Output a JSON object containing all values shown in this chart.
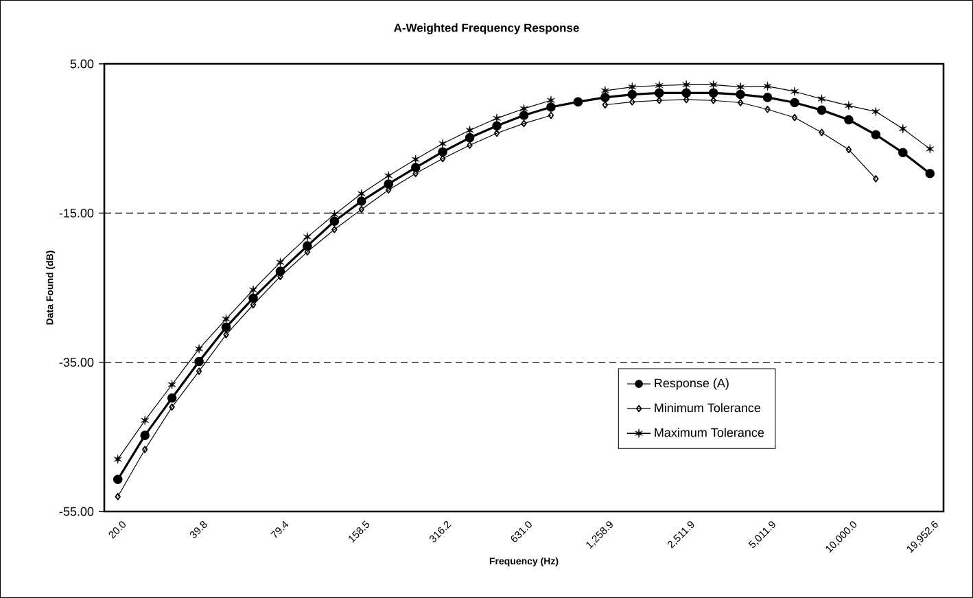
{
  "chart_data": {
    "type": "line",
    "title": "A-Weighted Frequency Response",
    "xlabel": "Frequency (Hz)",
    "ylabel": "Data Found (dB)",
    "categories": [
      "20.0",
      null,
      null,
      "39.8",
      null,
      null,
      "79.4",
      null,
      null,
      "158.5",
      null,
      null,
      "316.2",
      null,
      null,
      "631.0",
      null,
      null,
      "1,258.9",
      null,
      null,
      "2,511.9",
      null,
      null,
      "5,011.9",
      null,
      null,
      "10,000.0",
      null,
      null,
      "19,952.6"
    ],
    "ylim": [
      -55,
      5
    ],
    "yticks": [
      {
        "value": -55,
        "label": "-55.00"
      },
      {
        "value": -35,
        "label": "-35.00"
      },
      {
        "value": -15,
        "label": "-15.00"
      },
      {
        "value": 5,
        "label": "5.00"
      }
    ],
    "grid": "y",
    "legend": "bottom right",
    "line_style": "solid",
    "series": [
      {
        "name": "Response (A)",
        "color": "#000000",
        "marker": "circle",
        "values": [
          -50.7,
          -44.8,
          -39.8,
          -34.9,
          -30.3,
          -26.4,
          -22.8,
          -19.4,
          -16.1,
          -13.4,
          -11.1,
          -8.9,
          -6.8,
          -4.9,
          -3.3,
          -1.9,
          -0.8,
          -0.1,
          0.5,
          0.9,
          1.1,
          1.1,
          1.1,
          0.9,
          0.5,
          -0.2,
          -1.2,
          -2.5,
          -4.5,
          -6.9,
          -9.7
        ]
      },
      {
        "name": "Minimum Tolerance",
        "color": "#000000",
        "marker": "diamond",
        "values": [
          -53.0,
          -46.7,
          -41.0,
          -36.2,
          -31.3,
          -27.3,
          -23.5,
          -20.2,
          -17.2,
          -14.5,
          -11.9,
          -9.7,
          -7.7,
          -5.9,
          -4.3,
          -3.0,
          -1.9,
          null,
          -0.5,
          -0.1,
          0.1,
          0.2,
          0.1,
          -0.2,
          -1.1,
          -2.2,
          -4.2,
          -6.5,
          -10.4,
          null,
          null
        ]
      },
      {
        "name": "Maximum Tolerance",
        "color": "#000000",
        "marker": "cross",
        "values": [
          -48.0,
          -42.8,
          -38.0,
          -33.2,
          -29.2,
          -25.3,
          -21.6,
          -18.2,
          -15.2,
          -12.4,
          -10.0,
          -7.8,
          -5.7,
          -3.9,
          -2.3,
          -1.0,
          0.1,
          null,
          1.4,
          1.9,
          2.1,
          2.2,
          2.2,
          1.9,
          2.0,
          1.3,
          0.3,
          -0.6,
          -1.4,
          -3.7,
          -6.4
        ]
      }
    ]
  }
}
